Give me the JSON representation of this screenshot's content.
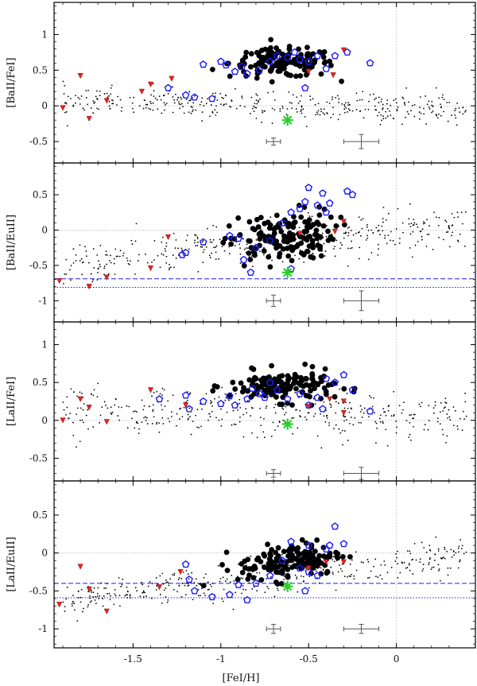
{
  "chart_data": {
    "type": "scatter",
    "xlabel": "[FeI/H]",
    "xlim": [
      -1.95,
      0.45
    ],
    "xticks": [
      -1.5,
      -1,
      -0.5,
      0
    ],
    "xtick_labels": [
      "-1.5",
      "-1",
      "-0.5",
      "0"
    ],
    "colors": {
      "thin_disk": "#000000",
      "thick_disk": "#000000",
      "halo_open_pentagon": "#1a1aff",
      "red_triangle": "#e8231c",
      "star_marker": "#2ecc2e",
      "dashed_line": "#1a1aff",
      "error_bar": "#555555",
      "zero_line": "#bbbbbb"
    },
    "panels": [
      {
        "id": "ba-fe",
        "ylabel": "[BaII/FeI]",
        "ylim": [
          -0.8,
          1.45
        ],
        "yticks": [
          -0.5,
          0,
          0.5,
          1
        ],
        "ytick_labels": [
          "-0.5",
          "0",
          "0.5",
          "1"
        ],
        "hlines": [],
        "star": [
          -0.62,
          -0.2
        ],
        "error_bars": [
          {
            "x": -0.7,
            "y": -0.5,
            "xerr": 0.04,
            "yerr": 0.05
          },
          {
            "x": -0.2,
            "y": -0.5,
            "xerr": 0.1,
            "yerr": 0.1
          }
        ],
        "thin_center": [
          -0.5,
          0.0
        ],
        "thin_spread": 0.1,
        "thick_center": [
          -0.65,
          0.6
        ],
        "thick_spread": 0.1,
        "halo_points": [
          [
            -1.3,
            0.25
          ],
          [
            -1.2,
            0.15
          ],
          [
            -1.15,
            0.12
          ],
          [
            -1.1,
            0.58
          ],
          [
            -1.0,
            0.62
          ],
          [
            -0.97,
            0.57
          ],
          [
            -0.92,
            0.48
          ],
          [
            -0.88,
            0.55
          ],
          [
            -0.85,
            0.45
          ],
          [
            -0.78,
            0.5
          ],
          [
            -0.72,
            0.62
          ],
          [
            -0.68,
            0.7
          ],
          [
            -0.62,
            0.68
          ],
          [
            -0.58,
            0.75
          ],
          [
            -0.55,
            0.65
          ],
          [
            -0.5,
            0.62
          ],
          [
            -0.45,
            0.7
          ],
          [
            -0.4,
            0.52
          ],
          [
            -0.35,
            0.7
          ],
          [
            -0.28,
            0.75
          ],
          [
            -0.15,
            0.6
          ],
          [
            -1.05,
            0.1
          ],
          [
            -0.52,
            0.25
          ]
        ],
        "red_points": [
          [
            -1.9,
            -0.03
          ],
          [
            -1.8,
            0.42
          ],
          [
            -1.75,
            -0.18
          ],
          [
            -1.65,
            0.07
          ],
          [
            -1.45,
            0.2
          ],
          [
            -1.4,
            0.3
          ],
          [
            -1.28,
            0.38
          ],
          [
            -0.5,
            0.48
          ],
          [
            -0.36,
            0.43
          ],
          [
            -0.3,
            0.78
          ]
        ]
      },
      {
        "id": "ba-eu",
        "ylabel": "[BaII/EuII]",
        "ylim": [
          -1.3,
          0.95
        ],
        "yticks": [
          -1,
          -0.5,
          0,
          0.5
        ],
        "ytick_labels": [
          "-1",
          "-0.5",
          "0",
          "0.5"
        ],
        "hlines": [
          {
            "y": -0.69,
            "style": "dashed"
          },
          {
            "y": -0.81,
            "style": "dotted"
          }
        ],
        "star": [
          -0.62,
          -0.6
        ],
        "error_bars": [
          {
            "x": -0.7,
            "y": -1.0,
            "xerr": 0.04,
            "yerr": 0.08
          },
          {
            "x": -0.2,
            "y": -1.0,
            "xerr": 0.1,
            "yerr": 0.14
          }
        ],
        "thin_center": [
          -0.35,
          -0.1
        ],
        "thin_spread": 0.15,
        "thick_center": [
          -0.65,
          -0.1
        ],
        "thick_spread": 0.18,
        "halo_points": [
          [
            -1.22,
            -0.35
          ],
          [
            -1.2,
            -0.32
          ],
          [
            -1.1,
            -0.17
          ],
          [
            -0.95,
            -0.08
          ],
          [
            -0.9,
            -0.12
          ],
          [
            -0.87,
            -0.42
          ],
          [
            -0.83,
            -0.6
          ],
          [
            -0.8,
            -0.25
          ],
          [
            -0.72,
            -0.15
          ],
          [
            -0.65,
            0.1
          ],
          [
            -0.6,
            0.25
          ],
          [
            -0.55,
            0.3
          ],
          [
            -0.52,
            0.4
          ],
          [
            -0.5,
            0.6
          ],
          [
            -0.45,
            0.35
          ],
          [
            -0.42,
            0.52
          ],
          [
            -0.4,
            0.25
          ],
          [
            -0.38,
            0.38
          ],
          [
            -0.28,
            0.55
          ],
          [
            -0.25,
            0.5
          ],
          [
            -0.6,
            -0.55
          ]
        ],
        "red_points": [
          [
            -1.92,
            -0.72
          ],
          [
            -1.75,
            -0.8
          ],
          [
            -1.65,
            -0.67
          ],
          [
            -1.4,
            -0.54
          ],
          [
            -1.3,
            -0.1
          ],
          [
            -0.55,
            -0.05
          ],
          [
            -0.35,
            -0.02
          ],
          [
            -0.3,
            0.12
          ]
        ]
      },
      {
        "id": "la-fe",
        "ylabel": "[LaII/FeI]",
        "ylim": [
          -0.8,
          1.3
        ],
        "yticks": [
          -0.5,
          0,
          0.5,
          1
        ],
        "ytick_labels": [
          "-0.5",
          "0",
          "0.5",
          "1"
        ],
        "hlines": [],
        "star": [
          -0.62,
          -0.05
        ],
        "error_bars": [
          {
            "x": -0.7,
            "y": -0.7,
            "xerr": 0.04,
            "yerr": 0.05
          },
          {
            "x": -0.2,
            "y": -0.7,
            "xerr": 0.1,
            "yerr": 0.08
          }
        ],
        "thin_center": [
          -0.5,
          0.08
        ],
        "thin_spread": 0.15,
        "thick_center": [
          -0.65,
          0.45
        ],
        "thick_spread": 0.1,
        "halo_points": [
          [
            -1.35,
            0.28
          ],
          [
            -1.2,
            0.33
          ],
          [
            -1.18,
            0.15
          ],
          [
            -1.1,
            0.25
          ],
          [
            -1.0,
            0.22
          ],
          [
            -0.95,
            0.32
          ],
          [
            -0.92,
            0.2
          ],
          [
            -0.85,
            0.28
          ],
          [
            -0.82,
            0.42
          ],
          [
            -0.78,
            0.35
          ],
          [
            -0.72,
            0.5
          ],
          [
            -0.68,
            0.4
          ],
          [
            -0.62,
            0.28
          ],
          [
            -0.55,
            0.35
          ],
          [
            -0.5,
            0.2
          ],
          [
            -0.45,
            0.3
          ],
          [
            -0.4,
            0.55
          ],
          [
            -0.35,
            0.5
          ],
          [
            -0.3,
            0.6
          ],
          [
            -0.25,
            0.4
          ],
          [
            -0.15,
            0.12
          ],
          [
            -0.75,
            0.3
          ],
          [
            -0.42,
            0.15
          ]
        ],
        "red_points": [
          [
            -1.9,
            0.0
          ],
          [
            -1.8,
            0.28
          ],
          [
            -1.75,
            0.17
          ],
          [
            -1.65,
            -0.02
          ],
          [
            -1.4,
            0.4
          ],
          [
            -1.2,
            0.2
          ],
          [
            -0.5,
            0.18
          ],
          [
            -0.38,
            0.28
          ],
          [
            -0.3,
            0.1
          ],
          [
            -0.3,
            0.25
          ]
        ]
      },
      {
        "id": "la-eu",
        "ylabel": "[LaII/EuII]",
        "ylim": [
          -1.25,
          0.95
        ],
        "yticks": [
          -1,
          -0.5,
          0,
          0.5
        ],
        "ytick_labels": [
          "-1",
          "-0.5",
          "0",
          "0.5"
        ],
        "hlines": [
          {
            "y": -0.4,
            "style": "dashed"
          },
          {
            "y": -0.59,
            "style": "dotted"
          }
        ],
        "star": [
          -0.62,
          -0.44
        ],
        "error_bars": [
          {
            "x": -0.7,
            "y": -1.0,
            "xerr": 0.04,
            "yerr": 0.06
          },
          {
            "x": -0.2,
            "y": -1.0,
            "xerr": 0.1,
            "yerr": 0.06
          }
        ],
        "thin_center": [
          -0.4,
          -0.25
        ],
        "thin_spread": 0.12,
        "thick_center": [
          -0.6,
          -0.1
        ],
        "thick_spread": 0.12,
        "halo_points": [
          [
            -1.2,
            -0.15
          ],
          [
            -1.18,
            -0.35
          ],
          [
            -1.15,
            -0.5
          ],
          [
            -1.05,
            -0.58
          ],
          [
            -0.95,
            -0.55
          ],
          [
            -0.9,
            -0.42
          ],
          [
            -0.85,
            -0.62
          ],
          [
            -0.8,
            -0.4
          ],
          [
            -0.72,
            -0.3
          ],
          [
            -0.65,
            -0.1
          ],
          [
            -0.6,
            0.15
          ],
          [
            -0.55,
            -0.2
          ],
          [
            -0.52,
            -0.5
          ],
          [
            -0.5,
            0.1
          ],
          [
            -0.45,
            -0.3
          ],
          [
            -0.4,
            0.05
          ],
          [
            -0.38,
            0.1
          ],
          [
            -0.35,
            0.35
          ],
          [
            -0.3,
            0.12
          ],
          [
            -0.5,
            -0.25
          ]
        ],
        "red_points": [
          [
            -1.92,
            -0.68
          ],
          [
            -1.8,
            -0.18
          ],
          [
            -1.75,
            -0.48
          ],
          [
            -1.65,
            -0.77
          ],
          [
            -1.35,
            -0.45
          ],
          [
            -1.23,
            -0.25
          ],
          [
            -0.5,
            -0.2
          ],
          [
            -0.4,
            -0.12
          ],
          [
            -0.3,
            -0.12
          ]
        ]
      }
    ]
  }
}
